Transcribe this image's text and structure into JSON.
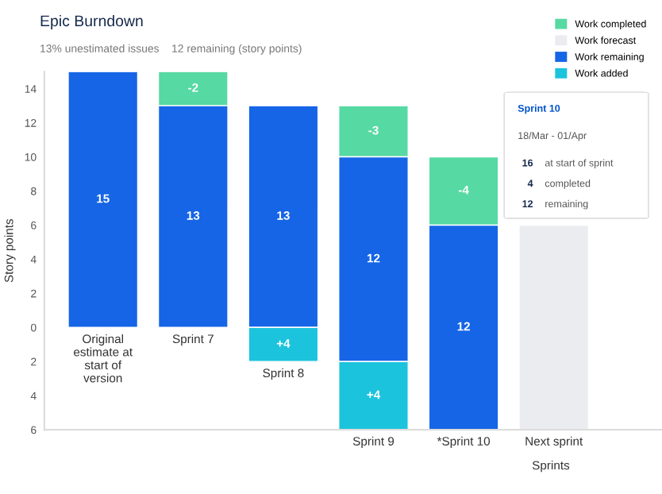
{
  "chart_data": {
    "type": "bar",
    "title": "Epic Burndown",
    "subtitle": "13% unestimated issues    12 remaining (story points)",
    "xlabel": "Sprints",
    "ylabel": "Story points",
    "categories": [
      "Original\nestimate at\nstart of\nversion",
      "Sprint 7",
      "Sprint 8",
      "Sprint 9",
      "*Sprint 10",
      "Next sprint"
    ],
    "series": [
      {
        "name": "Work completed",
        "color": "#57d9a3",
        "values": [
          null,
          2,
          null,
          3,
          4,
          null
        ],
        "base": [
          null,
          13,
          null,
          10,
          6,
          null
        ],
        "value_labels": [
          null,
          null,
          null,
          null,
          null,
          null
        ]
      },
      {
        "name": "Work forecast",
        "color": "#ebecf0",
        "values": [
          null,
          null,
          null,
          null,
          null,
          12
        ],
        "base": [
          null,
          null,
          null,
          null,
          null,
          -6
        ],
        "value_labels": [
          null,
          null,
          null,
          null,
          null,
          null
        ]
      },
      {
        "name": "Work remaining",
        "color": "#1565e6",
        "values": [
          15,
          13,
          13,
          12,
          12,
          null
        ],
        "base": [
          0,
          0,
          0,
          -2,
          -6,
          null
        ],
        "value_labels": [
          "15",
          "13",
          "13",
          "12",
          "12",
          null
        ]
      },
      {
        "name": "Work added",
        "color": "#1cc3dd",
        "values": [
          null,
          null,
          -2,
          4,
          null,
          null
        ],
        "base": [
          null,
          null,
          0,
          -6,
          null,
          null
        ],
        "value_labels": [
          null,
          null,
          null,
          null,
          null,
          null
        ]
      }
    ],
    "ylim": [
      -6,
      15
    ],
    "yticks": [
      {
        "value": -6,
        "label": "6"
      },
      {
        "value": -4,
        "label": "4"
      },
      {
        "value": -2,
        "label": "2"
      },
      0,
      2,
      4,
      6,
      8,
      10,
      12,
      14
    ],
    "legend": "top right",
    "annotations": [
      "Sprint 10",
      "18/Mar - 01/Apr",
      "16  at start of sprint",
      "4  completed",
      "12  remaining",
      "-2",
      "-3",
      "-4",
      "+4",
      "+4"
    ]
  }
}
